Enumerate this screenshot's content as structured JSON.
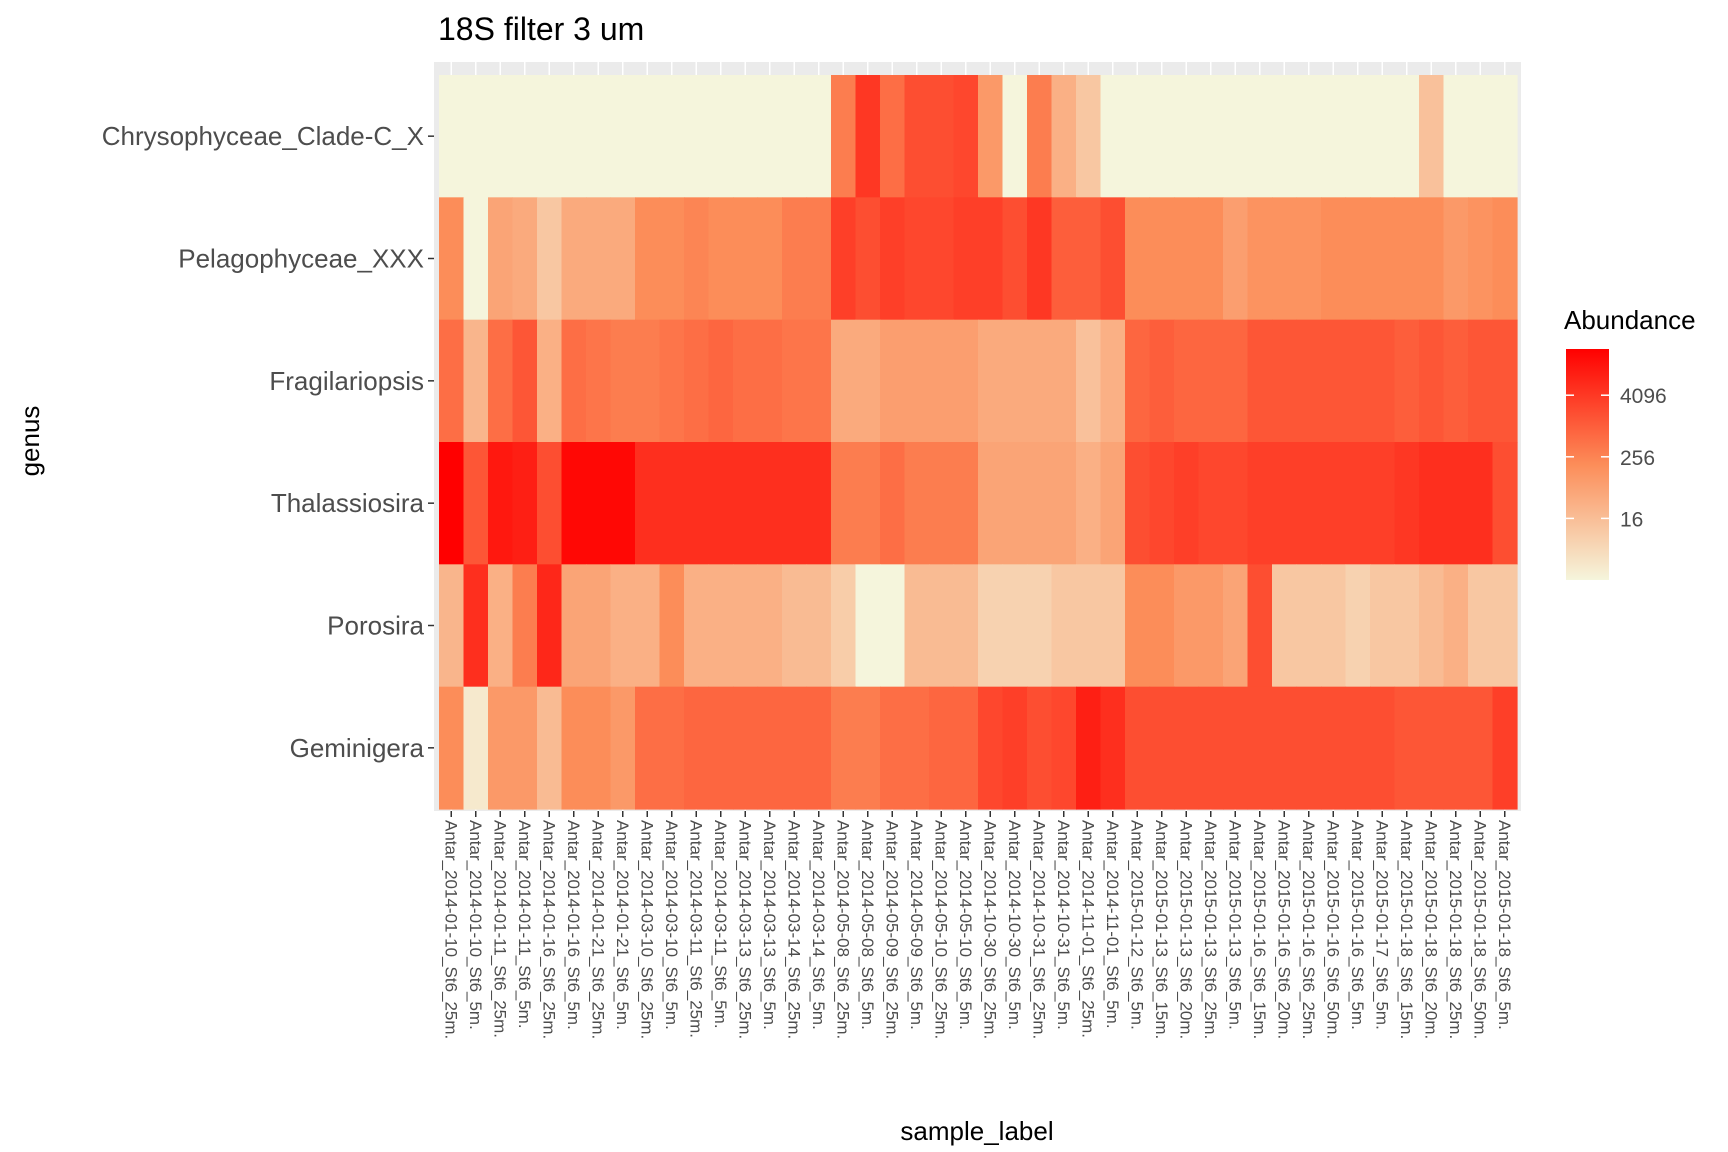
{
  "chart_data": {
    "type": "heatmap",
    "title": "18S filter 3 um",
    "xlabel": "sample_label",
    "ylabel": "genus",
    "legend": {
      "title": "Abundance",
      "scale": "log",
      "ticks": [
        16,
        256,
        4096
      ],
      "tick_labels": [
        "16",
        "256",
        "4096"
      ],
      "color_low": "#f5f5dc",
      "color_high": "#ff0000",
      "placement": "right"
    },
    "x": [
      "Antar_2014-01-10_St6_25m.",
      "Antar_2014-01-10_St6_5m.",
      "Antar_2014-01-11_St6_25m.",
      "Antar_2014-01-11_St6_5m.",
      "Antar_2014-01-16_St6_25m.",
      "Antar_2014-01-16_St6_5m.",
      "Antar_2014-01-21_St6_25m.",
      "Antar_2014-01-21_St6_5m.",
      "Antar_2014-03-10_St6_25m.",
      "Antar_2014-03-10_St6_5m.",
      "Antar_2014-03-11_St6_25m.",
      "Antar_2014-03-11_St6_5m.",
      "Antar_2014-03-13_St6_25m.",
      "Antar_2014-03-13_St6_5m.",
      "Antar_2014-03-14_St6_25m.",
      "Antar_2014-03-14_St6_5m.",
      "Antar_2014-05-08_St6_25m.",
      "Antar_2014-05-08_St6_5m.",
      "Antar_2014-05-09_St6_25m.",
      "Antar_2014-05-09_St6_5m.",
      "Antar_2014-05-10_St6_25m.",
      "Antar_2014-05-10_St6_5m.",
      "Antar_2014-10-30_St6_25m.",
      "Antar_2014-10-30_St6_5m.",
      "Antar_2014-10-31_St6_25m.",
      "Antar_2014-10-31_St6_5m.",
      "Antar_2014-11-01_St6_25m.",
      "Antar_2014-11-01_St6_5m.",
      "Antar_2015-01-12_St6_5m.",
      "Antar_2015-01-13_St6_15m.",
      "Antar_2015-01-13_St6_20m.",
      "Antar_2015-01-13_St6_25m.",
      "Antar_2015-01-13_St6_5m.",
      "Antar_2015-01-16_St6_15m.",
      "Antar_2015-01-16_St6_20m.",
      "Antar_2015-01-16_St6_25m.",
      "Antar_2015-01-16_St6_50m.",
      "Antar_2015-01-16_St6_5m.",
      "Antar_2015-01-17_St6_5m.",
      "Antar_2015-01-18_St6_15m.",
      "Antar_2015-01-18_St6_20m.",
      "Antar_2015-01-18_St6_25m.",
      "Antar_2015-01-18_St6_50m.",
      "Antar_2015-01-18_St6_5m."
    ],
    "y": [
      "Chrysophyceae_Clade-C_X",
      "Pelagophyceae_XXX",
      "Fragilariopsis",
      "Thalassiosira",
      "Porosira",
      "Geminigera"
    ],
    "value_unit": "log2(Abundance)",
    "values": [
      [
        0,
        0,
        0,
        0,
        0,
        0,
        0,
        0,
        0,
        0,
        0,
        0,
        0,
        0,
        0,
        0,
        10,
        14.5,
        11,
        13,
        13,
        13.5,
        8,
        0,
        10,
        6,
        4,
        0,
        0,
        0,
        0,
        0,
        0,
        0,
        0,
        0,
        0,
        0,
        0,
        0,
        4.5,
        0,
        0,
        0
      ],
      [
        9,
        0,
        7,
        6.5,
        4,
        6.5,
        6.5,
        6.5,
        9,
        9,
        9.5,
        9,
        9,
        9,
        10,
        10,
        14,
        13,
        14,
        13.5,
        13.5,
        14,
        14,
        13,
        14.5,
        12,
        12,
        13,
        9,
        9,
        9,
        9,
        7.5,
        8.5,
        8.5,
        8.5,
        9,
        9,
        9,
        9,
        9,
        8,
        8.5,
        9
      ],
      [
        11,
        5.5,
        11,
        12.5,
        6,
        11,
        10.5,
        10,
        10,
        10.5,
        11,
        11.5,
        11,
        11,
        10.5,
        10.5,
        6.5,
        6.5,
        7.5,
        7.5,
        7.5,
        7.5,
        6.5,
        6.5,
        6.5,
        6.5,
        4.5,
        6,
        11.5,
        12,
        11.5,
        11.5,
        11.5,
        12.5,
        12.5,
        12.5,
        12.5,
        12.5,
        12.5,
        12,
        12.5,
        12,
        12.5,
        12.5
      ],
      [
        18,
        12.5,
        16.5,
        16,
        13,
        17.5,
        17.5,
        17.5,
        15,
        15,
        15,
        15,
        15,
        15,
        15,
        15,
        10,
        10,
        11,
        10,
        10,
        10,
        7,
        7,
        7,
        7,
        6,
        7,
        13,
        13.5,
        14,
        13.5,
        13.5,
        14,
        14,
        14,
        14,
        14,
        14,
        14.5,
        15,
        15,
        15,
        13
      ],
      [
        5.5,
        15,
        6,
        10,
        15.5,
        7,
        7,
        6,
        6,
        9,
        6,
        6,
        6,
        6,
        5,
        5,
        3.5,
        0,
        0,
        5,
        5,
        5,
        3,
        3,
        3,
        4,
        4,
        4,
        9,
        9,
        8,
        8,
        7,
        13,
        4,
        4,
        4,
        3,
        4,
        4,
        5,
        6,
        4,
        4
      ],
      [
        9,
        1,
        8,
        8,
        5,
        9,
        9,
        8,
        11,
        11,
        11.5,
        11.5,
        11.5,
        11.5,
        11.5,
        11.5,
        10,
        10,
        11,
        11,
        11.5,
        11.5,
        13.5,
        14,
        13,
        13.5,
        16,
        15,
        13,
        13,
        13,
        13,
        13,
        13,
        13,
        13,
        13,
        13,
        13,
        12.5,
        12.5,
        12.5,
        12.5,
        14
      ]
    ]
  }
}
